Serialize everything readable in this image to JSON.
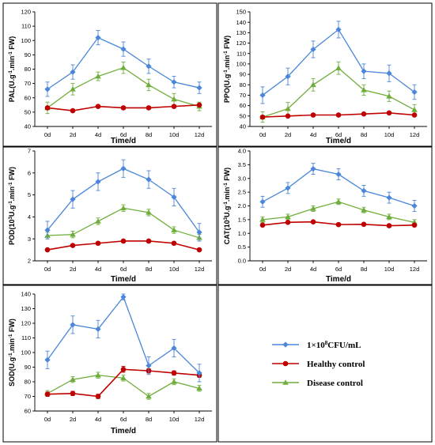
{
  "figure": {
    "legend": [
      {
        "series": "1×10^8CFU/mL",
        "text_main": "1×10",
        "text_sup": "8",
        "text_tail": "CFU/mL",
        "color": "#4a86d9",
        "marker": "diamond"
      },
      {
        "series": "Healthy control",
        "text_main": "Healthy control",
        "color": "#c00000",
        "marker": "circle"
      },
      {
        "series": "Disease control",
        "text_main": "Disease control",
        "color": "#6fae3c",
        "marker": "triangle"
      }
    ]
  },
  "chart_data": [
    {
      "type": "line",
      "ylabel": "PAL(U.g-1.min-1 FW)",
      "ylabel_parts": {
        "a": "PAL(U.g",
        "b": ".min",
        "c": " FW)"
      },
      "xlabel": "Time/d",
      "categories": [
        "0d",
        "2d",
        "4d",
        "6d",
        "8d",
        "10d",
        "12d"
      ],
      "ylim": [
        40,
        120
      ],
      "yticks": [
        40,
        50,
        60,
        70,
        80,
        90,
        100,
        110,
        120
      ],
      "series": [
        {
          "name": "1×10^8CFU/mL",
          "values": [
            66,
            78,
            102,
            94,
            82,
            71,
            67
          ],
          "errors": [
            5,
            5,
            5,
            5,
            5,
            4,
            4
          ]
        },
        {
          "name": "Healthy control",
          "values": [
            53,
            51,
            54,
            53,
            53,
            54,
            55
          ],
          "errors": [
            1,
            1,
            1,
            1,
            1,
            1,
            1
          ]
        },
        {
          "name": "Disease control",
          "values": [
            53,
            66,
            75,
            81,
            69,
            59,
            54
          ],
          "errors": [
            4,
            4,
            3,
            4,
            4,
            4,
            3
          ]
        }
      ]
    },
    {
      "type": "line",
      "ylabel": "PPO(U.g-1.min-1 FW)",
      "ylabel_parts": {
        "a": "PPO(U.g",
        "b": ".min",
        "c": " FW)"
      },
      "xlabel": "Time/d",
      "categories": [
        "0d",
        "2d",
        "4d",
        "6d",
        "8d",
        "10d",
        "12d"
      ],
      "ylim": [
        40,
        150
      ],
      "yticks": [
        40,
        50,
        60,
        70,
        80,
        90,
        100,
        110,
        120,
        130,
        140,
        150
      ],
      "series": [
        {
          "name": "1×10^8CFU/mL",
          "values": [
            70,
            88,
            114,
            133,
            93,
            91,
            73
          ],
          "errors": [
            8,
            8,
            8,
            8,
            7,
            8,
            7
          ]
        },
        {
          "name": "Healthy control",
          "values": [
            49,
            50,
            51,
            51,
            52,
            53,
            51
          ],
          "errors": [
            1,
            1,
            1,
            1,
            1,
            1,
            1
          ]
        },
        {
          "name": "Disease control",
          "values": [
            49,
            57,
            80,
            96,
            75,
            69,
            56
          ],
          "errors": [
            5,
            6,
            6,
            6,
            5,
            5,
            5
          ]
        }
      ]
    },
    {
      "type": "line",
      "ylabel": "POD(10^3U.g-1.min-1 FW)",
      "ylabel_parts": {
        "a": "POD(10",
        "sup0": "3",
        "b2": "U.g",
        "b": ".min",
        "c": " FW)"
      },
      "xlabel": "Time/d",
      "categories": [
        "0d",
        "2d",
        "4d",
        "6d",
        "8d",
        "10d",
        "12d"
      ],
      "ylim": [
        2,
        7
      ],
      "yticks": [
        2,
        3,
        4,
        5,
        6,
        7
      ],
      "series": [
        {
          "name": "1×10^8CFU/mL",
          "values": [
            3.4,
            4.8,
            5.6,
            6.2,
            5.7,
            4.9,
            3.3
          ],
          "errors": [
            0.4,
            0.4,
            0.4,
            0.4,
            0.4,
            0.4,
            0.4
          ]
        },
        {
          "name": "Healthy control",
          "values": [
            2.5,
            2.7,
            2.8,
            2.9,
            2.9,
            2.8,
            2.5
          ],
          "errors": [
            0.05,
            0.05,
            0.05,
            0.05,
            0.05,
            0.05,
            0.05
          ]
        },
        {
          "name": "Disease control",
          "values": [
            3.15,
            3.2,
            3.8,
            4.4,
            4.2,
            3.4,
            3.05
          ],
          "errors": [
            0.15,
            0.15,
            0.15,
            0.15,
            0.15,
            0.15,
            0.15
          ]
        }
      ]
    },
    {
      "type": "line",
      "ylabel": "CAT(10^3U.g-1.min-1 FW)",
      "ylabel_parts": {
        "a": "CAT(10",
        "sup0": "3",
        "b2": "U.g",
        "b": ".min",
        "c": " FW)"
      },
      "xlabel": "Time/d",
      "categories": [
        "0d",
        "2d",
        "4d",
        "6d",
        "8d",
        "10d",
        "12d"
      ],
      "ylim": [
        0.0,
        4.0
      ],
      "yticks": [
        0.0,
        0.5,
        1.0,
        1.5,
        2.0,
        2.5,
        3.0,
        3.5,
        4.0
      ],
      "ytick_decimals": 1,
      "series": [
        {
          "name": "1×10^8CFU/mL",
          "values": [
            2.15,
            2.65,
            3.35,
            3.15,
            2.55,
            2.3,
            2.0
          ],
          "errors": [
            0.2,
            0.2,
            0.2,
            0.2,
            0.2,
            0.2,
            0.2
          ]
        },
        {
          "name": "Healthy control",
          "values": [
            1.3,
            1.4,
            1.42,
            1.32,
            1.33,
            1.28,
            1.3
          ],
          "errors": [
            0.04,
            0.04,
            0.04,
            0.04,
            0.04,
            0.04,
            0.04
          ]
        },
        {
          "name": "Disease control",
          "values": [
            1.5,
            1.6,
            1.9,
            2.15,
            1.85,
            1.6,
            1.4
          ],
          "errors": [
            0.1,
            0.1,
            0.1,
            0.1,
            0.1,
            0.1,
            0.1
          ]
        }
      ]
    },
    {
      "type": "line",
      "ylabel": "SOD(U.g-1.min-1 FW)",
      "ylabel_parts": {
        "a": "SOD(U.g",
        "b": ".min",
        "c": " FW)"
      },
      "xlabel": "Time/d",
      "categories": [
        "0d",
        "2d",
        "4d",
        "6d",
        "8d",
        "10d",
        "12d"
      ],
      "ylim": [
        60,
        140
      ],
      "yticks": [
        60,
        70,
        80,
        90,
        100,
        110,
        120,
        130,
        140
      ],
      "series": [
        {
          "name": "1×10^8CFU/mL",
          "values": [
            95,
            119,
            116,
            138,
            91,
            103,
            86
          ],
          "errors": [
            6,
            6,
            6,
            2,
            6,
            6,
            6
          ]
        },
        {
          "name": "Healthy control",
          "values": [
            71.5,
            72,
            70,
            88.5,
            87.5,
            86,
            84.5
          ],
          "errors": [
            1.5,
            1.5,
            1.5,
            2,
            1.5,
            1.5,
            1.5
          ]
        },
        {
          "name": "Disease control",
          "values": [
            72,
            81.5,
            84.5,
            82.5,
            70,
            80,
            75.5
          ],
          "errors": [
            2,
            2,
            2,
            2,
            2,
            2,
            2
          ]
        }
      ]
    }
  ]
}
